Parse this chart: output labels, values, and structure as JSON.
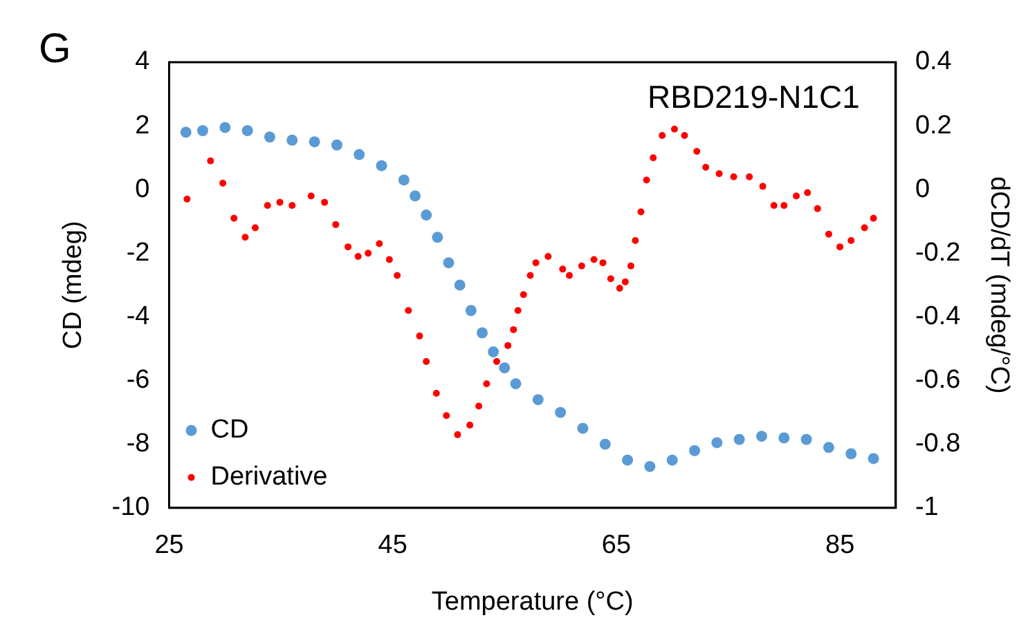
{
  "chart_data": {
    "type": "scatter",
    "xlabel": "Temperature (°C)",
    "ylabel": "CD (mdeg)",
    "y2label": "dCD/dT (mdeg/°C)",
    "annotations": [
      "G",
      "RBD219-N1C1"
    ],
    "xlim": [
      25,
      90
    ],
    "xticks": [
      25,
      45,
      65,
      85
    ],
    "ylim": [
      -10,
      4
    ],
    "yticks": [
      -10,
      -8,
      -6,
      -4,
      -2,
      0,
      2,
      4
    ],
    "y2lim": [
      -1,
      0.4
    ],
    "y2ticks": [
      -1,
      -0.8,
      -0.6,
      -0.4,
      -0.2,
      0,
      0.2,
      0.4
    ],
    "grid": false,
    "legend": "bottom left",
    "marker": "circle",
    "series": [
      {
        "name": "CD",
        "color": "#5b9bd5",
        "x": [
          26.5,
          28,
          30,
          32,
          34,
          36,
          38,
          40,
          42,
          44,
          46,
          47,
          48,
          49,
          50,
          51,
          52,
          53,
          54,
          55,
          56,
          58,
          60,
          62,
          64,
          66,
          68,
          70,
          72,
          74,
          76,
          78,
          80,
          82,
          84,
          86,
          88
        ],
        "values": [
          1.8,
          1.85,
          1.95,
          1.85,
          1.65,
          1.55,
          1.5,
          1.4,
          1.1,
          0.75,
          0.3,
          -0.2,
          -0.8,
          -1.5,
          -2.3,
          -3.0,
          -3.8,
          -4.5,
          -5.1,
          -5.6,
          -6.1,
          -6.6,
          -7.0,
          -7.5,
          -8.0,
          -8.5,
          -8.7,
          -8.5,
          -8.2,
          -7.95,
          -7.85,
          -7.75,
          -7.8,
          -7.85,
          -8.1,
          -8.3,
          -8.45
        ]
      },
      {
        "name": "Derivative",
        "color": "#ff0000",
        "axis": "y2",
        "x": [
          26.6,
          28.7,
          29.8,
          30.8,
          31.8,
          32.7,
          33.8,
          34.9,
          36,
          37.7,
          38.9,
          39.9,
          41,
          41.9,
          42.8,
          43.8,
          44.7,
          45.4,
          46.4,
          47.4,
          48,
          48.9,
          49.8,
          50.8,
          51.9,
          52.7,
          53.4,
          54.3,
          55.3,
          55.8,
          56.2,
          56.7,
          57.3,
          57.8,
          58.9,
          60.2,
          60.8,
          61.9,
          63,
          63.8,
          64.5,
          65.3,
          65.8,
          66.3,
          66.7,
          67.2,
          67.7,
          68.3,
          69.1,
          70.2,
          71.1,
          72.2,
          73,
          74.2,
          75.5,
          76.9,
          78.1,
          79.1,
          80,
          81.1,
          82.1,
          83,
          84,
          85,
          86,
          87.2,
          88
        ],
        "values": [
          -0.03,
          0.09,
          0.02,
          -0.09,
          -0.15,
          -0.12,
          -0.05,
          -0.04,
          -0.05,
          -0.02,
          -0.04,
          -0.11,
          -0.18,
          -0.21,
          -0.2,
          -0.17,
          -0.22,
          -0.27,
          -0.38,
          -0.46,
          -0.54,
          -0.64,
          -0.71,
          -0.77,
          -0.74,
          -0.68,
          -0.61,
          -0.54,
          -0.49,
          -0.44,
          -0.38,
          -0.33,
          -0.27,
          -0.23,
          -0.21,
          -0.25,
          -0.27,
          -0.24,
          -0.22,
          -0.23,
          -0.28,
          -0.31,
          -0.29,
          -0.24,
          -0.16,
          -0.07,
          0.03,
          0.1,
          0.17,
          0.19,
          0.17,
          0.12,
          0.07,
          0.05,
          0.04,
          0.04,
          0.01,
          -0.05,
          -0.05,
          -0.02,
          -0.01,
          -0.06,
          -0.14,
          -0.18,
          -0.16,
          -0.12,
          -0.09
        ]
      }
    ]
  }
}
